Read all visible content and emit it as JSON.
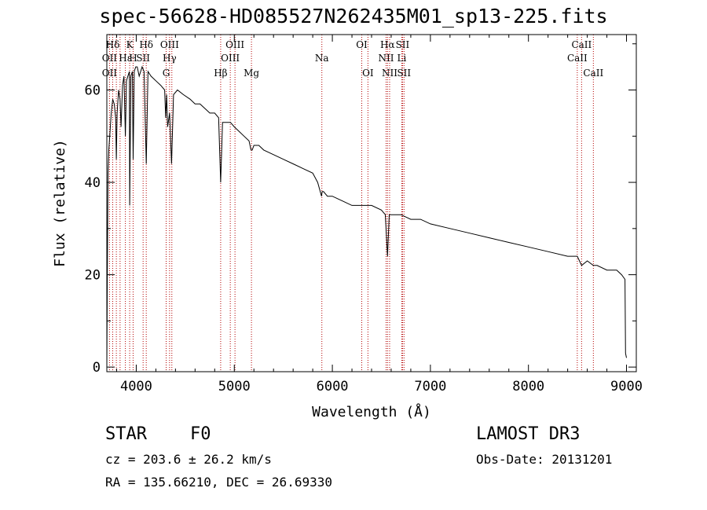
{
  "chart_data": {
    "type": "line",
    "title": "spec-56628-HD085527N262435M01_sp13-225.fits",
    "xlabel": "Wavelength (Å)",
    "ylabel": "Flux (relative)",
    "xlim": [
      3700,
      9100
    ],
    "ylim": [
      -1,
      72
    ],
    "xticks": [
      4000,
      5000,
      6000,
      7000,
      8000,
      9000
    ],
    "xtick_labels": [
      "4000",
      "5000",
      "6000",
      "7000",
      "8000",
      "9000"
    ],
    "yticks": [
      0,
      20,
      40,
      60
    ],
    "ytick_labels": [
      "0",
      "20",
      "40",
      "60"
    ],
    "grid": false,
    "series": [
      {
        "name": "spectrum",
        "x": [
          3700,
          3705,
          3712,
          3720,
          3730,
          3745,
          3760,
          3775,
          3790,
          3797,
          3805,
          3820,
          3835,
          3845,
          3860,
          3875,
          3889,
          3900,
          3915,
          3930,
          3933,
          3945,
          3960,
          3968,
          3980,
          3995,
          4010,
          4030,
          4060,
          4080,
          4102,
          4120,
          4150,
          4200,
          4250,
          4290,
          4300,
          4310,
          4320,
          4340,
          4360,
          4380,
          4420,
          4480,
          4550,
          4600,
          4650,
          4700,
          4750,
          4800,
          4840,
          4861,
          4880,
          4920,
          4960,
          5000,
          5050,
          5100,
          5150,
          5170,
          5183,
          5200,
          5250,
          5300,
          5400,
          5500,
          5600,
          5700,
          5800,
          5850,
          5890,
          5896,
          5910,
          5950,
          6000,
          6100,
          6200,
          6300,
          6400,
          6500,
          6540,
          6563,
          6580,
          6600,
          6700,
          6800,
          6900,
          7000,
          7200,
          7400,
          7600,
          7800,
          8000,
          8200,
          8400,
          8498,
          8542,
          8600,
          8662,
          8700,
          8800,
          8900,
          8950,
          8985,
          8990,
          9000
        ],
        "y": [
          0,
          20,
          42,
          47,
          50,
          55,
          58,
          57,
          54,
          45,
          55,
          60,
          58,
          52,
          61,
          63,
          50,
          62,
          63,
          64,
          35,
          63,
          64,
          45,
          64,
          65,
          65,
          63,
          65,
          64,
          44,
          64,
          63,
          62,
          61,
          60,
          54,
          59,
          52,
          55,
          44,
          59,
          60,
          59,
          58,
          57,
          57,
          56,
          55,
          55,
          54,
          40,
          53,
          53,
          53,
          52,
          51,
          50,
          49,
          47,
          47,
          48,
          48,
          47,
          46,
          45,
          44,
          43,
          42,
          40,
          37,
          38,
          38,
          37,
          37,
          36,
          35,
          35,
          35,
          34,
          33,
          24,
          33,
          33,
          33,
          32,
          32,
          31,
          30,
          29,
          28,
          27,
          26,
          25,
          24,
          24,
          22,
          23,
          22,
          22,
          21,
          21,
          20,
          19,
          3,
          2
        ]
      }
    ],
    "annotations": [
      {
        "label": "Hδ",
        "x": 4102,
        "row": 1
      },
      {
        "label": "K",
        "x": 3933,
        "row": 1
      },
      {
        "label": "Hδ",
        "x": 3760,
        "row": 1
      },
      {
        "label": "OII",
        "x": 3727,
        "row": 2
      },
      {
        "label": "Hε",
        "x": 3889,
        "row": 2
      },
      {
        "label": "H",
        "x": 3968,
        "row": 2
      },
      {
        "label": "SII",
        "x": 4070,
        "row": 2
      },
      {
        "label": "OII",
        "x": 3727,
        "row": 3
      },
      {
        "label": "OIII",
        "x": 4340,
        "row": 1
      },
      {
        "label": "Hγ",
        "x": 4340,
        "row": 2
      },
      {
        "label": "G",
        "x": 4305,
        "row": 3
      },
      {
        "label": "OIII",
        "x": 5007,
        "row": 1
      },
      {
        "label": "OIII",
        "x": 4959,
        "row": 2
      },
      {
        "label": "Hβ",
        "x": 4861,
        "row": 3
      },
      {
        "label": "Mg",
        "x": 5175,
        "row": 3
      },
      {
        "label": "Na",
        "x": 5893,
        "row": 2
      },
      {
        "label": "OI",
        "x": 6300,
        "row": 1
      },
      {
        "label": "OI",
        "x": 6363,
        "row": 3
      },
      {
        "label": "Hα",
        "x": 6563,
        "row": 1
      },
      {
        "label": "SII",
        "x": 6716,
        "row": 1
      },
      {
        "label": "NII",
        "x": 6548,
        "row": 2
      },
      {
        "label": "Li",
        "x": 6708,
        "row": 2
      },
      {
        "label": "NII",
        "x": 6584,
        "row": 3
      },
      {
        "label": "SII",
        "x": 6731,
        "row": 3
      },
      {
        "label": "CaII",
        "x": 8542,
        "row": 1
      },
      {
        "label": "CaII",
        "x": 8498,
        "row": 2
      },
      {
        "label": "CaII",
        "x": 8662,
        "row": 3
      }
    ],
    "line_marks": [
      3727,
      3760,
      3797,
      3835,
      3889,
      3933,
      3968,
      4070,
      4102,
      4305,
      4340,
      4363,
      4861,
      4959,
      5007,
      5175,
      5893,
      6300,
      6363,
      6548,
      6563,
      6584,
      6708,
      6716,
      6731,
      8498,
      8542,
      8662
    ]
  },
  "info": {
    "object_class": "STAR",
    "subclass": "F0",
    "survey": "LAMOST DR3",
    "redshift_text": "cz = 203.6 ± 26.2 km/s",
    "obs_date_text": "Obs-Date: 20131201",
    "coords_text": "RA = 135.66210, DEC =  26.69330"
  },
  "colors": {
    "spectrum": "#000000",
    "line_marks": "#b30000",
    "background": "#ffffff"
  }
}
